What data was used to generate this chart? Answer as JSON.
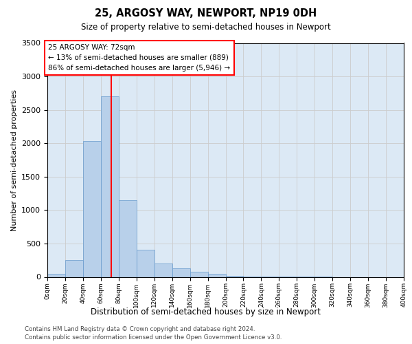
{
  "title_line1": "25, ARGOSY WAY, NEWPORT, NP19 0DH",
  "title_line2": "Size of property relative to semi-detached houses in Newport",
  "xlabel": "Distribution of semi-detached houses by size in Newport",
  "ylabel": "Number of semi-detached properties",
  "bin_edges": [
    0,
    20,
    40,
    60,
    80,
    100,
    120,
    140,
    160,
    180,
    200,
    220,
    240,
    260,
    280,
    300,
    320,
    340,
    360,
    380,
    400
  ],
  "bar_heights": [
    50,
    250,
    2030,
    2700,
    1150,
    410,
    200,
    130,
    80,
    50,
    20,
    10,
    5,
    3,
    2,
    1,
    0,
    0,
    0,
    0
  ],
  "bar_color": "#b8d0ea",
  "bar_edge_color": "#6699cc",
  "property_size": 72,
  "annotation_title": "25 ARGOSY WAY: 72sqm",
  "annotation_line2": "← 13% of semi-detached houses are smaller (889)",
  "annotation_line3": "86% of semi-detached houses are larger (5,946) →",
  "vline_color": "red",
  "ylim": [
    0,
    3500
  ],
  "yticks": [
    0,
    500,
    1000,
    1500,
    2000,
    2500,
    3000,
    3500
  ],
  "grid_color": "#cccccc",
  "bg_color": "#dce9f5",
  "footer_line1": "Contains HM Land Registry data © Crown copyright and database right 2024.",
  "footer_line2": "Contains public sector information licensed under the Open Government Licence v3.0."
}
